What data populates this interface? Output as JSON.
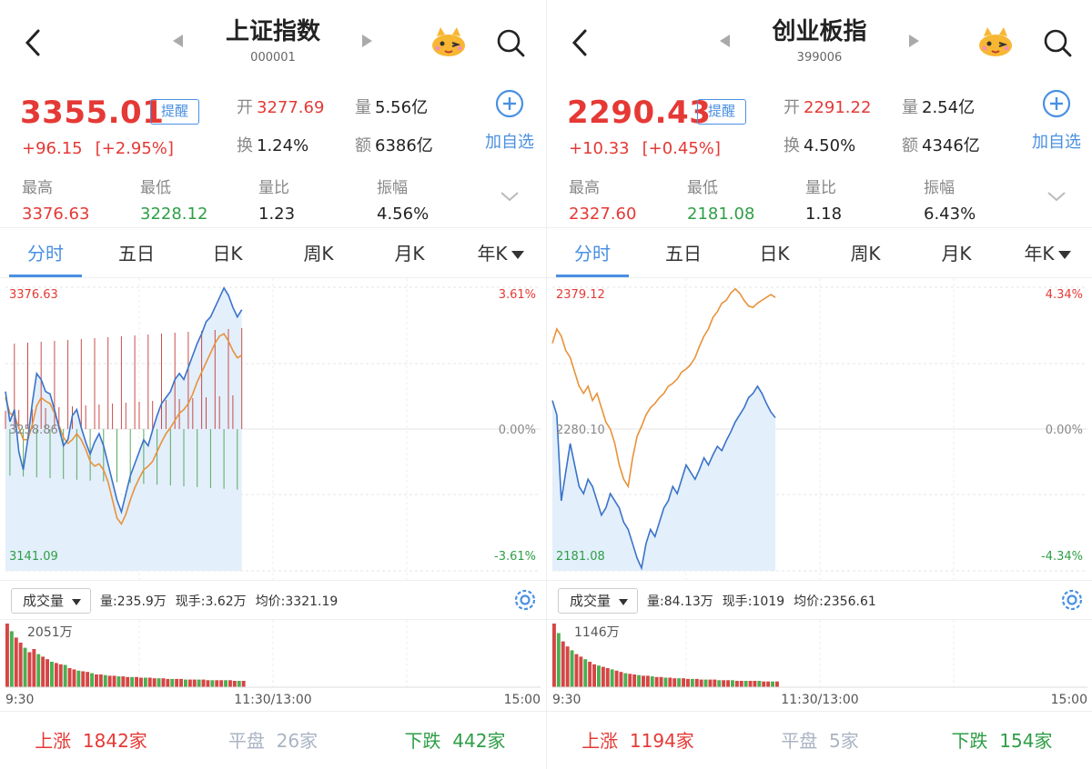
{
  "panels": [
    {
      "title": "上证指数",
      "code": "000001",
      "price": "3355.01",
      "change": "+96.15",
      "change_pct": "[+2.95%]",
      "remind": "提醒",
      "open_label": "开",
      "open": "3277.69",
      "vol_label": "量",
      "vol": "5.56亿",
      "turnover_label": "换",
      "turnover": "1.24%",
      "amount_label": "额",
      "amount": "6386亿",
      "add_label": "加自选",
      "stats": [
        {
          "label": "最高",
          "value": "3376.63",
          "color": "#e53935"
        },
        {
          "label": "最低",
          "value": "3228.12",
          "color": "#2e9e46"
        },
        {
          "label": "量比",
          "value": "1.23",
          "color": "#222"
        },
        {
          "label": "振幅",
          "value": "4.56%",
          "color": "#222"
        }
      ],
      "tabs": [
        "分时",
        "五日",
        "日K",
        "周K",
        "月K",
        "年K"
      ],
      "chart": {
        "y_high": "3376.63",
        "y_mid": "3258.86",
        "y_low": "3141.09",
        "pct_high": "3.61%",
        "pct_mid": "0.00%",
        "pct_low": "-3.61%",
        "price_line": [
          3290,
          3265,
          3275,
          3240,
          3225,
          3250,
          3280,
          3305,
          3300,
          3290,
          3288,
          3275,
          3260,
          3245,
          3250,
          3270,
          3275,
          3260,
          3248,
          3238,
          3248,
          3255,
          3245,
          3230,
          3215,
          3200,
          3190,
          3205,
          3220,
          3230,
          3240,
          3250,
          3245,
          3258,
          3270,
          3280,
          3285,
          3290,
          3300,
          3305,
          3300,
          3310,
          3320,
          3330,
          3338,
          3348,
          3352,
          3360,
          3368,
          3376,
          3370,
          3360,
          3352,
          3358
        ],
        "avg_line": [
          3285,
          3272,
          3270,
          3260,
          3250,
          3250,
          3262,
          3278,
          3285,
          3282,
          3280,
          3272,
          3262,
          3252,
          3247,
          3250,
          3255,
          3250,
          3242,
          3232,
          3228,
          3230,
          3225,
          3215,
          3200,
          3185,
          3180,
          3188,
          3200,
          3210,
          3218,
          3225,
          3228,
          3232,
          3240,
          3248,
          3255,
          3260,
          3266,
          3272,
          3275,
          3280,
          3288,
          3298,
          3306,
          3314,
          3322,
          3330,
          3336,
          3338,
          3332,
          3324,
          3318,
          3320
        ]
      },
      "vol_select": "成交量",
      "vol_info": [
        "量:235.9万",
        "现手:3.62万",
        "均价:3321.19"
      ],
      "vol_peak": "2051万",
      "vol_bars": [
        100,
        88,
        78,
        70,
        62,
        55,
        60,
        52,
        48,
        44,
        40,
        38,
        36,
        35,
        30,
        28,
        26,
        25,
        24,
        22,
        20,
        20,
        19,
        18,
        18,
        17,
        17,
        16,
        16,
        16,
        15,
        15,
        15,
        14,
        14,
        14,
        13,
        13,
        13,
        13,
        12,
        12,
        12,
        12,
        12,
        11,
        11,
        11,
        11,
        11,
        11,
        10,
        10,
        10
      ],
      "time_labels": [
        "9:30",
        "11:30/13:00",
        "15:00"
      ],
      "up_label": "上涨",
      "up": "1842家",
      "flat_label": "平盘",
      "flat": "26家",
      "down_label": "下跌",
      "down": "442家"
    },
    {
      "title": "创业板指",
      "code": "399006",
      "price": "2290.43",
      "change": "+10.33",
      "change_pct": "[+0.45%]",
      "remind": "提醒",
      "open_label": "开",
      "open": "2291.22",
      "vol_label": "量",
      "vol": "2.54亿",
      "turnover_label": "换",
      "turnover": "4.50%",
      "amount_label": "额",
      "amount": "4346亿",
      "add_label": "加自选",
      "stats": [
        {
          "label": "最高",
          "value": "2327.60",
          "color": "#e53935"
        },
        {
          "label": "最低",
          "value": "2181.08",
          "color": "#2e9e46"
        },
        {
          "label": "量比",
          "value": "1.18",
          "color": "#222"
        },
        {
          "label": "振幅",
          "value": "6.43%",
          "color": "#222"
        }
      ],
      "tabs": [
        "分时",
        "五日",
        "日K",
        "周K",
        "月K",
        "年K"
      ],
      "chart": {
        "y_high": "2379.12",
        "y_mid": "2280.10",
        "y_low": "2181.08",
        "pct_high": "4.34%",
        "pct_mid": "0.00%",
        "pct_low": "-4.34%",
        "price_line": [
          2300,
          2290,
          2230,
          2250,
          2270,
          2255,
          2240,
          2235,
          2245,
          2240,
          2230,
          2220,
          2225,
          2235,
          2230,
          2225,
          2215,
          2210,
          2200,
          2190,
          2183,
          2200,
          2210,
          2205,
          2215,
          2225,
          2230,
          2240,
          2235,
          2245,
          2255,
          2250,
          2245,
          2252,
          2260,
          2255,
          2262,
          2268,
          2265,
          2272,
          2278,
          2285,
          2290,
          2295,
          2302,
          2305,
          2310,
          2305,
          2298,
          2292,
          2288
        ],
        "avg_line": [
          2340,
          2350,
          2345,
          2335,
          2330,
          2320,
          2310,
          2305,
          2310,
          2300,
          2305,
          2295,
          2285,
          2280,
          2270,
          2255,
          2245,
          2240,
          2260,
          2275,
          2282,
          2290,
          2295,
          2298,
          2302,
          2305,
          2310,
          2312,
          2315,
          2320,
          2322,
          2325,
          2330,
          2338,
          2345,
          2350,
          2358,
          2362,
          2368,
          2370,
          2375,
          2378,
          2375,
          2370,
          2366,
          2365,
          2368,
          2370,
          2372,
          2374,
          2372
        ]
      },
      "vol_select": "成交量",
      "vol_info": [
        "量:84.13万",
        "现手:1019",
        "均价:2356.61"
      ],
      "vol_peak": "1146万",
      "vol_bars": [
        100,
        85,
        72,
        64,
        58,
        52,
        48,
        44,
        40,
        36,
        34,
        32,
        30,
        28,
        26,
        24,
        22,
        21,
        20,
        19,
        18,
        18,
        17,
        16,
        16,
        15,
        15,
        14,
        14,
        14,
        13,
        13,
        13,
        12,
        12,
        12,
        12,
        11,
        11,
        11,
        11,
        10,
        10,
        10,
        10,
        10,
        10,
        9,
        9,
        9,
        9
      ],
      "time_labels": [
        "9:30",
        "11:30/13:00",
        "15:00"
      ],
      "up_label": "上涨",
      "up": "1194家",
      "flat_label": "平盘",
      "flat": "5家",
      "down_label": "下跌",
      "down": "154家"
    }
  ],
  "colors": {
    "up": "#e53935",
    "down": "#2e9e46",
    "accent": "#4a90e2",
    "flat": "#aab4c3"
  }
}
